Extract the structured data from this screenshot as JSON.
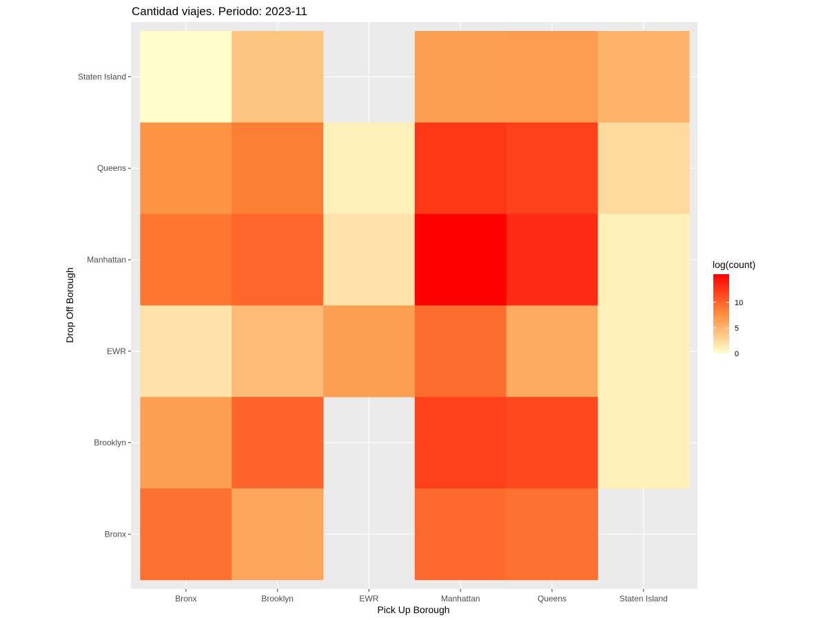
{
  "chart_data": {
    "type": "heatmap",
    "title": "Cantidad viajes. Periodo: 2023-11",
    "xlabel": "Pick Up Borough",
    "ylabel": "Drop Off Borough",
    "x_categories": [
      "Bronx",
      "Brooklyn",
      "EWR",
      "Manhattan",
      "Queens",
      "Staten Island"
    ],
    "y_categories": [
      "Bronx",
      "Brooklyn",
      "EWR",
      "Manhattan",
      "Queens",
      "Staten Island"
    ],
    "cells": [
      {
        "x": "Bronx",
        "y": "Staten Island",
        "value": 0
      },
      {
        "x": "Brooklyn",
        "y": "Staten Island",
        "value": 4
      },
      {
        "x": "Manhattan",
        "y": "Staten Island",
        "value": 6.5
      },
      {
        "x": "Queens",
        "y": "Staten Island",
        "value": 6.8
      },
      {
        "x": "Staten Island",
        "y": "Staten Island",
        "value": 5.2
      },
      {
        "x": "Bronx",
        "y": "Queens",
        "value": 7.3
      },
      {
        "x": "Brooklyn",
        "y": "Queens",
        "value": 8.5
      },
      {
        "x": "EWR",
        "y": "Queens",
        "value": 1
      },
      {
        "x": "Manhattan",
        "y": "Queens",
        "value": 12.5
      },
      {
        "x": "Queens",
        "y": "Queens",
        "value": 12
      },
      {
        "x": "Staten Island",
        "y": "Queens",
        "value": 2.5
      },
      {
        "x": "Bronx",
        "y": "Manhattan",
        "value": 9
      },
      {
        "x": "Brooklyn",
        "y": "Manhattan",
        "value": 9.9
      },
      {
        "x": "EWR",
        "y": "Manhattan",
        "value": 2
      },
      {
        "x": "Manhattan",
        "y": "Manhattan",
        "value": 15.5
      },
      {
        "x": "Queens",
        "y": "Manhattan",
        "value": 13.2
      },
      {
        "x": "Staten Island",
        "y": "Manhattan",
        "value": 1
      },
      {
        "x": "Bronx",
        "y": "EWR",
        "value": 2
      },
      {
        "x": "Brooklyn",
        "y": "EWR",
        "value": 4.6
      },
      {
        "x": "EWR",
        "y": "EWR",
        "value": 6.5
      },
      {
        "x": "Manhattan",
        "y": "EWR",
        "value": 9.5
      },
      {
        "x": "Queens",
        "y": "EWR",
        "value": 5.8
      },
      {
        "x": "Staten Island",
        "y": "EWR",
        "value": 1
      },
      {
        "x": "Bronx",
        "y": "Brooklyn",
        "value": 6.5
      },
      {
        "x": "Brooklyn",
        "y": "Brooklyn",
        "value": 10
      },
      {
        "x": "Manhattan",
        "y": "Brooklyn",
        "value": 12
      },
      {
        "x": "Queens",
        "y": "Brooklyn",
        "value": 11.5
      },
      {
        "x": "Staten Island",
        "y": "Brooklyn",
        "value": 1
      },
      {
        "x": "Bronx",
        "y": "Bronx",
        "value": 9.3
      },
      {
        "x": "Brooklyn",
        "y": "Bronx",
        "value": 6
      },
      {
        "x": "Manhattan",
        "y": "Bronx",
        "value": 9.7
      },
      {
        "x": "Queens",
        "y": "Bronx",
        "value": 9.3
      }
    ],
    "legend": {
      "title": "log(count)",
      "breaks": [
        0,
        5,
        10
      ],
      "limits": [
        0,
        15.5
      ],
      "low_color": "#ffffcc",
      "mid_color": "#fd8d3c",
      "high_color": "#ff0000",
      "position": "right"
    },
    "panel_background": "#ebebeb",
    "grid_color": "#ffffff",
    "grid": true
  }
}
